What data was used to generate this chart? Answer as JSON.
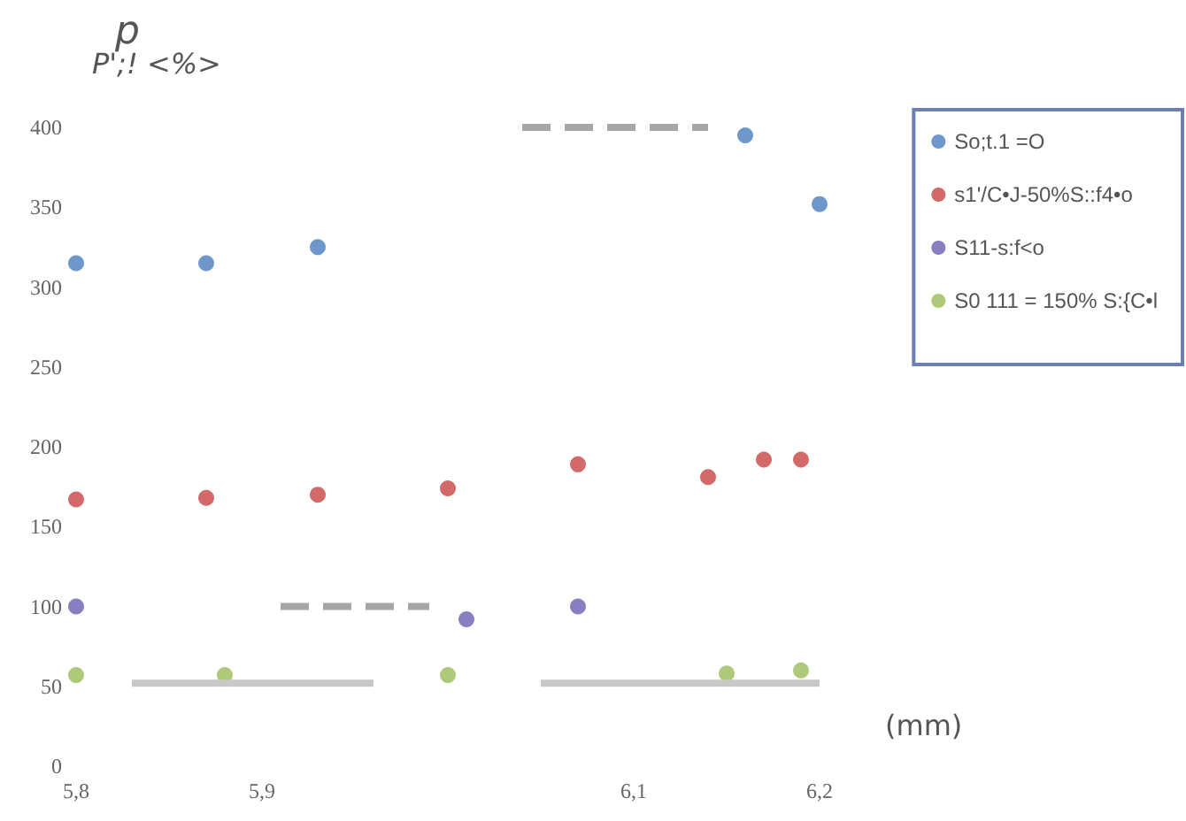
{
  "chart_data": {
    "type": "scatter",
    "title": "p",
    "ylabel": "P';! <%>",
    "xlabel": "(mm)",
    "xlim": [
      5.8,
      6.2
    ],
    "xticks": [
      {
        "value": 5.8,
        "label": "5,8"
      },
      {
        "value": 5.9,
        "label": "5,9"
      },
      {
        "value": 6.1,
        "label": "6,1"
      },
      {
        "value": 6.2,
        "label": "6,2"
      }
    ],
    "ylim": [
      0,
      400
    ],
    "yticks": [
      0,
      50,
      100,
      150,
      200,
      250,
      300,
      350,
      400
    ],
    "grid": false,
    "legend": "top right",
    "marker": "circle",
    "series": [
      {
        "name": "So;t.1 =O",
        "color": "#4a7ebf",
        "x": [
          5.8,
          5.87,
          5.93,
          6.16,
          6.2
        ],
        "values": [
          315,
          315,
          325,
          395,
          352
        ]
      },
      {
        "name": "s1'/C•J-50%S::f4•o",
        "color": "#c84444",
        "x": [
          5.8,
          5.87,
          5.93,
          6.0,
          6.07,
          6.14,
          6.17,
          6.19
        ],
        "values": [
          167,
          168,
          170,
          174,
          189,
          181,
          192,
          192
        ]
      },
      {
        "name": "S11-s:f<o",
        "color": "#6a5fb0",
        "x": [
          5.8,
          6.01,
          6.07
        ],
        "values": [
          100,
          92,
          100
        ]
      },
      {
        "name": "S0 111 = 150% S:{C•l",
        "color": "#9bbb59",
        "x": [
          5.8,
          5.88,
          6.0,
          6.15,
          6.19
        ],
        "values": [
          57,
          57,
          57,
          58,
          60
        ]
      },
      {
        "type": "line",
        "color": "#a6a6a6",
        "line_style": "dashed",
        "marker": "none",
        "x": [
          5.91,
          5.99
        ],
        "values": [
          100,
          100
        ]
      },
      {
        "type": "line",
        "color": "#a6a6a6",
        "line_style": "dashed",
        "marker": "none",
        "x": [
          6.04,
          6.14
        ],
        "values": [
          400,
          400
        ]
      },
      {
        "type": "line",
        "color": "#c8c8c8",
        "line_style": "solid",
        "marker": "none",
        "x": [
          5.83,
          5.96
        ],
        "values": [
          52,
          52
        ]
      },
      {
        "type": "line",
        "color": "#c8c8c8",
        "line_style": "solid",
        "marker": "none",
        "x": [
          6.05,
          6.2
        ],
        "values": [
          52,
          52
        ]
      }
    ]
  }
}
